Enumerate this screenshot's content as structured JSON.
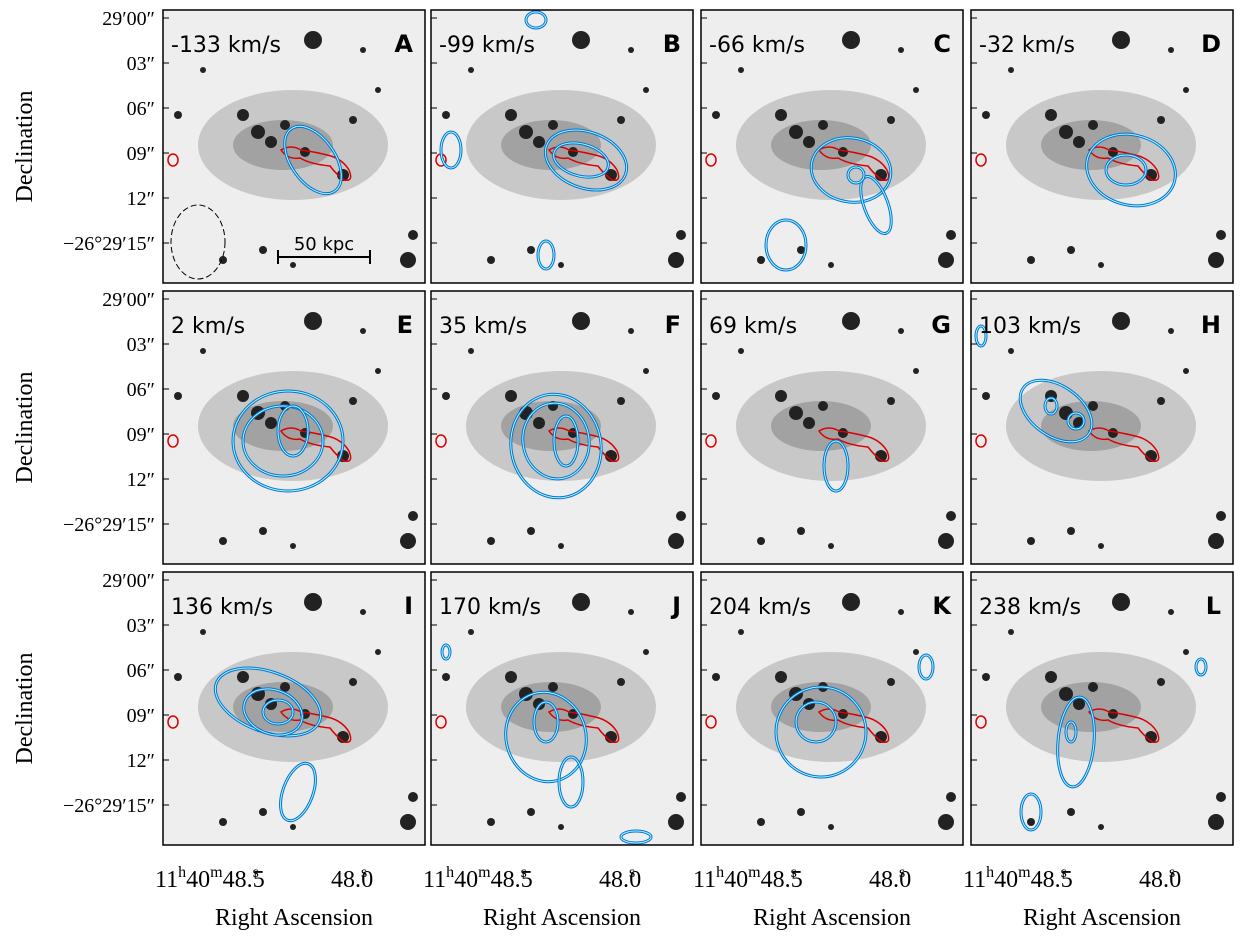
{
  "panels": [
    {
      "velocity": "-133 km/s",
      "letter": "A"
    },
    {
      "velocity": "-99 km/s",
      "letter": "B"
    },
    {
      "velocity": "-66 km/s",
      "letter": "C"
    },
    {
      "velocity": "-32 km/s",
      "letter": "D"
    },
    {
      "velocity": "2 km/s",
      "letter": "E"
    },
    {
      "velocity": "35 km/s",
      "letter": "F"
    },
    {
      "velocity": "69 km/s",
      "letter": "G"
    },
    {
      "velocity": "103 km/s",
      "letter": "H"
    },
    {
      "velocity": "136 km/s",
      "letter": "I"
    },
    {
      "velocity": "170 km/s",
      "letter": "J"
    },
    {
      "velocity": "204 km/s",
      "letter": "K"
    },
    {
      "velocity": "238 km/s",
      "letter": "L"
    }
  ],
  "scale_bar": "50 kpc",
  "y_axis": {
    "label": "Declination",
    "ticks": [
      "29′00″",
      "03″",
      "06″",
      "09″",
      "12″",
      "−26°29′15″"
    ]
  },
  "x_axis": {
    "label": "Right Ascension",
    "ticks": [
      [
        "11",
        "h",
        "40",
        "m",
        "48.",
        "s",
        "5"
      ],
      [
        "48.",
        "s",
        "0"
      ]
    ]
  }
}
